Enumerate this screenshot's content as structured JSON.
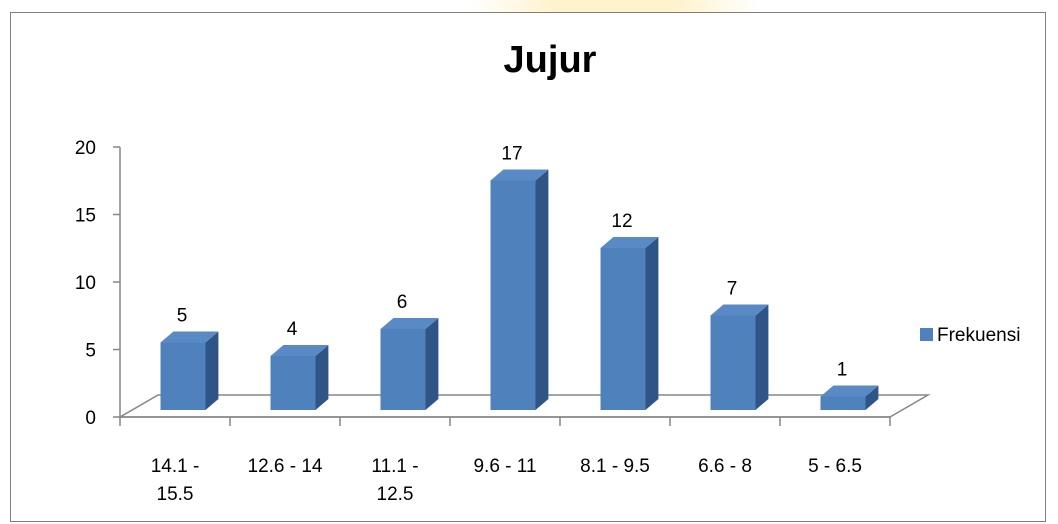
{
  "chart_data": {
    "type": "bar",
    "title": "Jujur",
    "categories": [
      [
        "14.1 -",
        "15.5"
      ],
      [
        "12.6 - 14"
      ],
      [
        "11.1 -",
        "12.5"
      ],
      [
        "9.6 - 11"
      ],
      [
        "8.1 - 9.5"
      ],
      [
        "6.6 - 8"
      ],
      [
        "5 - 6.5"
      ]
    ],
    "series": [
      {
        "name": "Frekuensi",
        "values": [
          5,
          4,
          6,
          17,
          12,
          7,
          1
        ]
      }
    ],
    "ylim": [
      0,
      20
    ],
    "yticks": [
      0,
      5,
      10,
      15,
      20
    ],
    "data_labels": true,
    "legend_position": "right",
    "style": "3d-column",
    "colors": {
      "bar_front": "#4f81bd",
      "bar_top": "#5a8ac6",
      "bar_side": "#2f5486",
      "wall": "#868686"
    }
  }
}
